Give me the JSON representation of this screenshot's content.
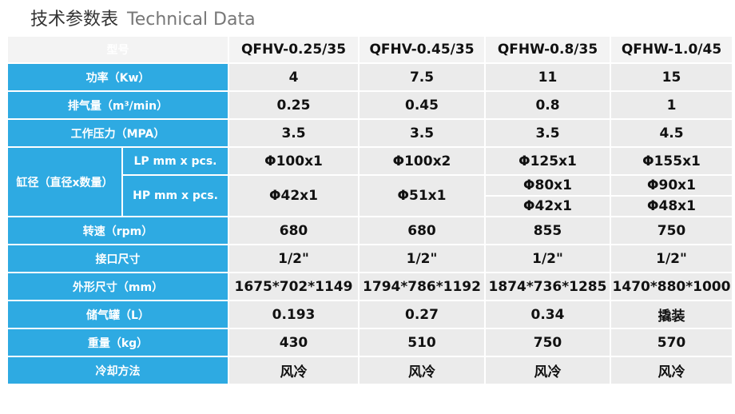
{
  "title": {
    "cn": "技术参数表",
    "en": "Technical Data"
  },
  "table": {
    "header": [
      "型号",
      "QFHV-0.25/35",
      "QFHV-0.45/35",
      "QFHW-0.8/35",
      "QFHW-1.0/45"
    ],
    "rows_top": [
      [
        "功率（Kw）",
        "4",
        "7.5",
        "11",
        "15"
      ],
      [
        "排气量（m³/min）",
        "0.25",
        "0.45",
        "0.8",
        "1"
      ],
      [
        "工作压力（MPA）",
        "3.5",
        "3.5",
        "3.5",
        "4.5"
      ]
    ],
    "cylinder": {
      "label": "缸径（直径x数量）",
      "lp": [
        "LP mm x pcs.",
        "Φ100x1",
        "Φ100x2",
        "Φ125x1",
        "Φ155x1"
      ],
      "hp": [
        "HP mm x pcs.",
        "Φ42x1",
        "Φ51x1",
        [
          "Φ80x1",
          "Φ42x1"
        ],
        [
          "Φ90x1",
          "Φ48x1"
        ]
      ]
    },
    "rows_bottom": [
      [
        "转速（rpm）",
        "680",
        "680",
        "855",
        "750"
      ],
      [
        "接口尺寸",
        "1/2\"",
        "1/2\"",
        "1/2\"",
        "1/2\""
      ],
      [
        "外形尺寸（mm）",
        "1675*702*1149",
        "1794*786*1192",
        "1874*736*1285",
        "1470*880*1000"
      ],
      [
        "储气罐（L）",
        "0.193",
        "0.27",
        "0.34",
        "撬装"
      ],
      [
        "重量（kg）",
        "430",
        "510",
        "750",
        "570"
      ],
      [
        "冷却方法",
        "风冷",
        "风冷",
        "风冷",
        "风冷"
      ]
    ]
  }
}
